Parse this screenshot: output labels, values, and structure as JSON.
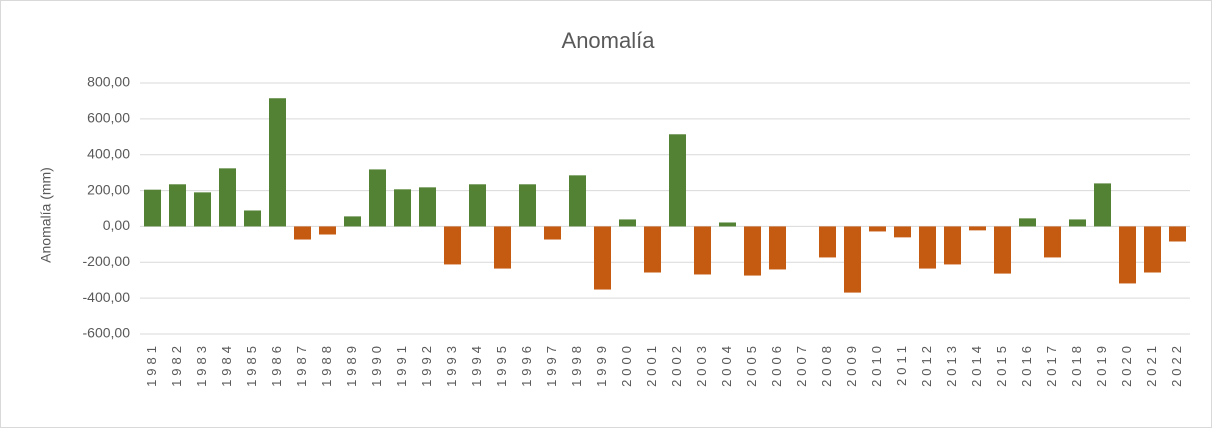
{
  "chart_data": {
    "type": "bar",
    "title": "Anomalía",
    "y_label": "Anomalía (mm)",
    "categories": [
      "1981",
      "1982",
      "1983",
      "1984",
      "1985",
      "1986",
      "1987",
      "1988",
      "1989",
      "1990",
      "1991",
      "1992",
      "1993",
      "1994",
      "1995",
      "1996",
      "1997",
      "1998",
      "1999",
      "2000",
      "2001",
      "2002",
      "2003",
      "2004",
      "2005",
      "2006",
      "2007",
      "2008",
      "2009",
      "2010",
      "2011",
      "2012",
      "2013",
      "2014",
      "2015",
      "2016",
      "2017",
      "2018",
      "2019",
      "2020",
      "2021",
      "2022"
    ],
    "values": [
      205,
      235,
      190,
      324,
      89,
      715,
      -73,
      -45,
      56,
      318,
      207,
      218,
      -212,
      235,
      -235,
      235,
      -73,
      285,
      -352,
      39,
      -257,
      514,
      -268,
      22,
      -274,
      -240,
      0,
      -173,
      -369,
      -28,
      -61,
      -235,
      -212,
      -22,
      -263,
      45,
      -173,
      39,
      240,
      -318,
      -257,
      -84
    ],
    "color": "#548235",
    "negative_color": "#c55a11",
    "ylim": [
      -600,
      800
    ],
    "yticks": [
      {
        "value": -600,
        "label": "-600,00"
      },
      {
        "value": -400,
        "label": "-400,00"
      },
      {
        "value": -200,
        "label": "-200,00"
      },
      {
        "value": 0,
        "label": "0,00"
      },
      {
        "value": 200,
        "label": "200,00"
      },
      {
        "value": 400,
        "label": "400,00"
      },
      {
        "value": 600,
        "label": "600,00"
      },
      {
        "value": 800,
        "label": "800,00"
      }
    ],
    "grid": true
  }
}
